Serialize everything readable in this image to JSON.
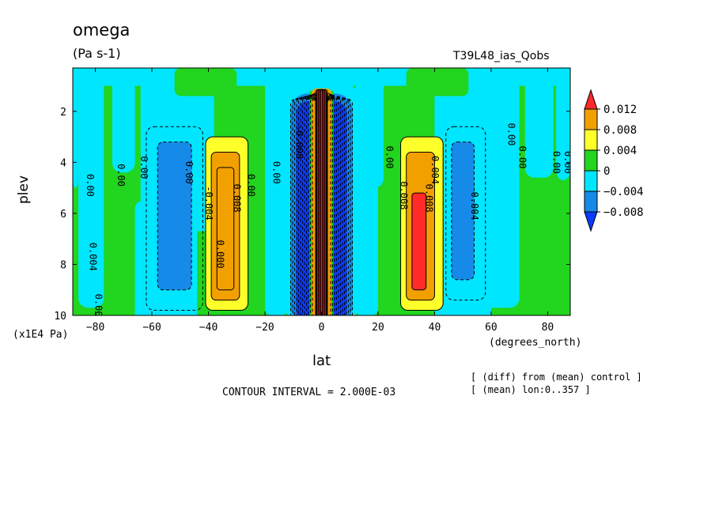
{
  "header": {
    "title": "omega",
    "units": "(Pa s-1)",
    "run": "T39L48_ias_Qobs"
  },
  "footer": {
    "contour_interval": "CONTOUR INTERVAL = 2.000E-03",
    "note1": "[ (diff) from (mean) control ]",
    "note2": "[ (mean) lon:0..357 ]"
  },
  "chart_data": {
    "type": "heatmap",
    "title": "omega",
    "xlabel": "lat",
    "xunit": "(degrees_north)",
    "ylabel": "plev",
    "yunit": "(x1E4 Pa)",
    "xlim": [
      -88,
      88
    ],
    "ylim": [
      10,
      0.3
    ],
    "x_ticks": [
      -80,
      -60,
      -40,
      -20,
      0,
      20,
      40,
      60,
      80
    ],
    "y_ticks": [
      2,
      4,
      6,
      8,
      10
    ],
    "colorbar": {
      "labels": [
        "0.012",
        "0.008",
        "0.004",
        "0",
        "−0.004",
        "−0.008"
      ],
      "colors": [
        "#ff2a2a",
        "#f2a000",
        "#ffff2a",
        "#22d51e",
        "#00e6ff",
        "#168ae8",
        "#0a3cff"
      ],
      "bins": [
        "> 0.012",
        "0.008 to 0.012",
        "0.004 to 0.008",
        "0 to 0.004",
        "-0.004 to 0",
        "-0.008 to -0.004",
        "< -0.008"
      ]
    },
    "features": [
      {
        "lat_range": [
          -2,
          2
        ],
        "plev_range": [
          1.2,
          10
        ],
        "value": "> 0.012"
      },
      {
        "lat_range": [
          -10,
          -2
        ],
        "plev_range": [
          1.5,
          10
        ],
        "value": "< -0.008"
      },
      {
        "lat_range": [
          2,
          10
        ],
        "plev_range": [
          1.5,
          10
        ],
        "value": "< -0.008"
      },
      {
        "lat_range": [
          -40,
          -27
        ],
        "plev_range": [
          3.5,
          9.5
        ],
        "value": "0.008 to 0.012"
      },
      {
        "lat_range": [
          30,
          40
        ],
        "plev_range": [
          3.5,
          9.5
        ],
        "value": "> 0.012"
      },
      {
        "lat_range": [
          -58,
          -46
        ],
        "plev_range": [
          3.2,
          9
        ],
        "value": "-0.008 to -0.004"
      },
      {
        "lat_range": [
          46,
          54
        ],
        "plev_range": [
          3.2,
          8.6
        ],
        "value": "-0.008 to -0.004"
      }
    ],
    "contour_labels": [
      "0.00",
      "0.000",
      "0.004",
      "-0.004",
      "0.008",
      "-0.008"
    ],
    "grid": false,
    "legend": "right"
  }
}
